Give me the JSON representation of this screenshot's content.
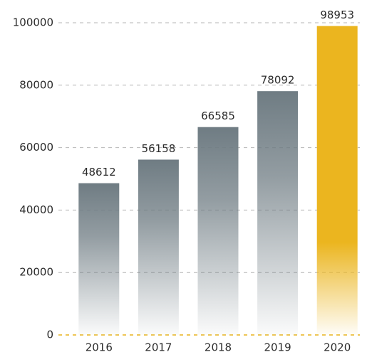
{
  "chart_data": {
    "type": "bar",
    "categories": [
      "2016",
      "2017",
      "2018",
      "2019",
      "2020"
    ],
    "values": [
      48612,
      56158,
      66585,
      78092,
      98953
    ],
    "colors": [
      "#6f7c83",
      "#6f7c83",
      "#6f7c83",
      "#6f7c83",
      "#ebb51f"
    ],
    "ylim": [
      0,
      100000
    ],
    "yticks": [
      0,
      20000,
      40000,
      60000,
      80000,
      100000
    ],
    "grid": true
  }
}
